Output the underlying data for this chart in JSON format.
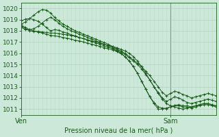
{
  "title": "Pression niveau de la mer( hPa )",
  "bg_color": "#cce8d8",
  "grid_major_color": "#aaccbb",
  "grid_minor_color": "#bbddc9",
  "line_color": "#1a5c1a",
  "marker_color": "#1a5c1a",
  "ylim": [
    1010.5,
    1020.5
  ],
  "yticks": [
    1011,
    1012,
    1013,
    1014,
    1015,
    1016,
    1017,
    1018,
    1019,
    1020
  ],
  "xtick_labels": [
    "Ven",
    "Sam"
  ],
  "xtick_positions": [
    0,
    36
  ],
  "vline_x": 36,
  "n_points": 48,
  "series": [
    [
      1018.6,
      1018.8,
      1019.1,
      1019.4,
      1019.7,
      1019.9,
      1019.85,
      1019.6,
      1019.2,
      1018.9,
      1018.6,
      1018.4,
      1018.2,
      1018.0,
      1017.85,
      1017.7,
      1017.55,
      1017.4,
      1017.25,
      1017.1,
      1016.95,
      1016.8,
      1016.6,
      1016.4,
      1016.2,
      1016.0,
      1015.7,
      1015.4,
      1015.1,
      1014.8,
      1014.4,
      1014.0,
      1013.5,
      1013.0,
      1012.5,
      1012.2,
      1012.4,
      1012.6,
      1012.5,
      1012.3,
      1012.2,
      1012.0,
      1012.1,
      1012.2,
      1012.3,
      1012.4,
      1012.3,
      1012.2
    ],
    [
      1018.3,
      1018.1,
      1018.1,
      1018.2,
      1018.4,
      1018.7,
      1019.0,
      1019.2,
      1019.0,
      1018.7,
      1018.4,
      1018.2,
      1018.0,
      1017.85,
      1017.7,
      1017.55,
      1017.4,
      1017.25,
      1017.1,
      1016.95,
      1016.8,
      1016.65,
      1016.5,
      1016.3,
      1016.1,
      1015.9,
      1015.6,
      1015.3,
      1015.0,
      1014.6,
      1014.1,
      1013.6,
      1013.0,
      1012.5,
      1012.0,
      1011.7,
      1011.9,
      1012.1,
      1012.0,
      1011.8,
      1011.6,
      1011.5,
      1011.6,
      1011.7,
      1011.8,
      1011.9,
      1011.8,
      1011.7
    ],
    [
      1018.4,
      1018.2,
      1018.0,
      1017.95,
      1017.95,
      1017.9,
      1017.85,
      1017.8,
      1017.8,
      1017.75,
      1017.7,
      1017.65,
      1017.6,
      1017.5,
      1017.4,
      1017.3,
      1017.2,
      1017.1,
      1017.0,
      1016.9,
      1016.8,
      1016.7,
      1016.6,
      1016.5,
      1016.35,
      1016.2,
      1016.0,
      1015.7,
      1015.3,
      1014.8,
      1014.2,
      1013.6,
      1013.0,
      1012.4,
      1011.9,
      1011.5,
      1011.3,
      1011.2,
      1011.1,
      1011.0,
      1011.1,
      1011.2,
      1011.3,
      1011.4,
      1011.5,
      1011.5,
      1011.4,
      1011.3
    ],
    [
      1018.9,
      1019.05,
      1019.1,
      1019.0,
      1018.85,
      1018.6,
      1018.3,
      1018.0,
      1018.1,
      1018.05,
      1017.9,
      1017.8,
      1017.65,
      1017.55,
      1017.4,
      1017.3,
      1017.15,
      1017.05,
      1016.9,
      1016.8,
      1016.65,
      1016.55,
      1016.4,
      1016.2,
      1016.0,
      1015.7,
      1015.3,
      1014.8,
      1014.2,
      1013.5,
      1012.8,
      1012.1,
      1011.5,
      1011.0,
      1011.0,
      1011.1,
      1011.2,
      1011.3,
      1011.3,
      1011.2,
      1011.2,
      1011.1,
      1011.2,
      1011.3,
      1011.4,
      1011.4,
      1011.3,
      1011.2
    ],
    [
      1018.5,
      1018.3,
      1018.1,
      1018.0,
      1017.9,
      1017.8,
      1017.7,
      1017.6,
      1017.55,
      1017.5,
      1017.4,
      1017.35,
      1017.25,
      1017.15,
      1017.1,
      1017.0,
      1016.9,
      1016.8,
      1016.7,
      1016.6,
      1016.5,
      1016.4,
      1016.3,
      1016.15,
      1015.95,
      1015.7,
      1015.3,
      1014.8,
      1014.2,
      1013.5,
      1012.8,
      1012.1,
      1011.6,
      1011.2,
      1011.1,
      1011.05,
      1011.2,
      1011.35,
      1011.4,
      1011.3,
      1011.3,
      1011.2,
      1011.3,
      1011.4,
      1011.5,
      1011.5,
      1011.4,
      1011.3
    ]
  ]
}
